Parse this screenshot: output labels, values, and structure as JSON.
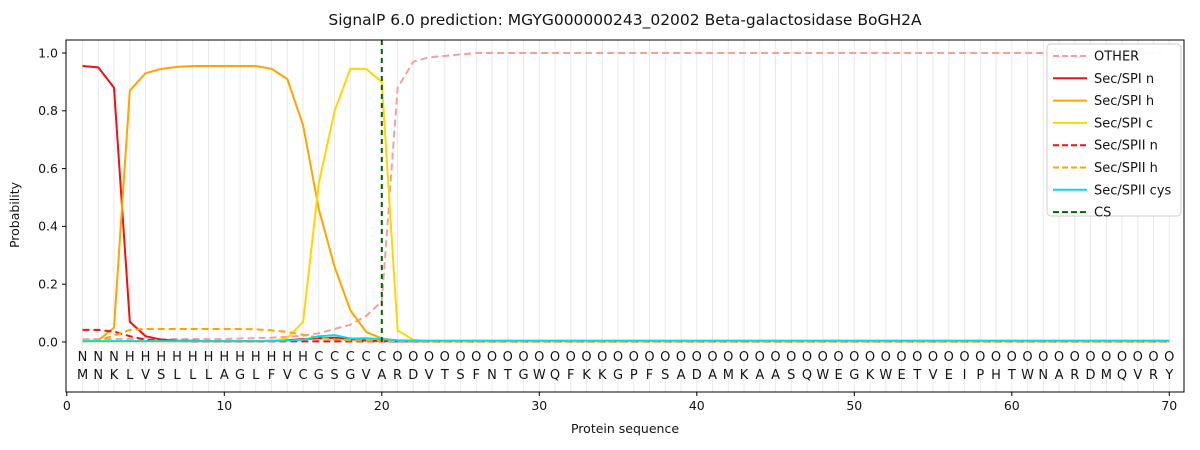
{
  "chart_data": {
    "type": "line",
    "title": "SignalP 6.0 prediction: MGYG000000243_02002 Beta-galactosidase BoGH2A",
    "xlabel": "Protein sequence",
    "ylabel": "Probability",
    "xlim": [
      0,
      71
    ],
    "ylim": [
      -0.17,
      1.045
    ],
    "xticks": [
      0,
      10,
      20,
      30,
      40,
      50,
      60,
      70
    ],
    "ytick_values": [
      0,
      0.2,
      0.4,
      0.6,
      0.8,
      1.0
    ],
    "ytick_labels": [
      "0.0",
      "0.2",
      "0.4",
      "0.6",
      "0.8",
      "1.0"
    ],
    "grid": "light vertical gridline at every residue position",
    "legend_position": "upper right",
    "sequence": "MNKLVSLLLAGLFVCGSGVARDVTSFNTGWQFKKGPFSADAMKAASQWEGKWETVEIPHTWNARDMQVRY",
    "region_labels": "NNNHHHHHHHHHHHHCCCCCOOOOOOOOOOOOOOOOOOOOOOOOOOOOOOOOOOOOOOOOOOOOOOOOOO",
    "label_colors": {
      "N": "#ee1111",
      "H": "#ffa500",
      "C": "#f7c600",
      "O": "#8c8c8c"
    },
    "sequence_color": "#3a3a3a",
    "cs_position": 20,
    "cs": {
      "label": "CS",
      "color": "#006400",
      "dash": true
    },
    "series": [
      {
        "id": "other",
        "label": "OTHER",
        "color": "#f2a1a1",
        "dash": true,
        "values": [
          0.01,
          0.01,
          0.01,
          0.01,
          0.01,
          0.01,
          0.01,
          0.01,
          0.01,
          0.01,
          0.012,
          0.013,
          0.015,
          0.018,
          0.022,
          0.03,
          0.045,
          0.06,
          0.09,
          0.14,
          0.88,
          0.97,
          0.985,
          0.99,
          0.995,
          1.0,
          1.0,
          1.0,
          1.0,
          1.0,
          1.0,
          1.0,
          1.0,
          1.0,
          1.0,
          1.0,
          1.0,
          1.0,
          1.0,
          1.0,
          1.0,
          1.0,
          1.0,
          1.0,
          1.0,
          1.0,
          1.0,
          1.0,
          1.0,
          1.0,
          1.0,
          1.0,
          1.0,
          1.0,
          1.0,
          1.0,
          1.0,
          1.0,
          1.0,
          1.0,
          1.0,
          1.0,
          1.0,
          1.0,
          1.0,
          1.0,
          1.0,
          1.0,
          1.0,
          1.0
        ]
      },
      {
        "id": "spi-n",
        "label": "Sec/SPI n",
        "color": "#ee1111",
        "dash": false,
        "values": [
          0.955,
          0.95,
          0.88,
          0.07,
          0.02,
          0.008,
          0.005,
          0.004,
          0.003,
          0.003,
          0.003,
          0.003,
          0.004,
          0.006,
          0.01,
          0.013,
          0.015,
          0.01,
          0.005,
          0.003,
          0.002,
          0.002,
          0.002,
          0.002,
          0.002,
          0.002,
          0.002,
          0.002,
          0.002,
          0.002,
          0.002,
          0.002,
          0.002,
          0.002,
          0.002,
          0.002,
          0.002,
          0.002,
          0.002,
          0.002,
          0.002,
          0.002,
          0.002,
          0.002,
          0.002,
          0.002,
          0.002,
          0.002,
          0.002,
          0.002,
          0.002,
          0.002,
          0.002,
          0.002,
          0.002,
          0.002,
          0.002,
          0.002,
          0.002,
          0.002,
          0.002,
          0.002,
          0.002,
          0.002,
          0.002,
          0.002,
          0.002,
          0.002,
          0.002,
          0.002
        ]
      },
      {
        "id": "spi-h",
        "label": "Sec/SPI h",
        "color": "#ffa500",
        "dash": false,
        "values": [
          0.002,
          0.006,
          0.05,
          0.87,
          0.93,
          0.945,
          0.952,
          0.955,
          0.955,
          0.955,
          0.955,
          0.955,
          0.945,
          0.91,
          0.75,
          0.46,
          0.26,
          0.11,
          0.035,
          0.012,
          0.005,
          0.002,
          0.002,
          0.002,
          0.002,
          0.002,
          0.002,
          0.002,
          0.002,
          0.002,
          0.002,
          0.002,
          0.002,
          0.002,
          0.002,
          0.002,
          0.002,
          0.002,
          0.002,
          0.002,
          0.002,
          0.002,
          0.002,
          0.002,
          0.002,
          0.002,
          0.002,
          0.002,
          0.002,
          0.002,
          0.002,
          0.002,
          0.002,
          0.002,
          0.002,
          0.002,
          0.002,
          0.002,
          0.002,
          0.002,
          0.002,
          0.002,
          0.002,
          0.002,
          0.002,
          0.002,
          0.002,
          0.002,
          0.002,
          0.002
        ]
      },
      {
        "id": "spi-c",
        "label": "Sec/SPI c",
        "color": "#ffd700",
        "dash": false,
        "values": [
          0.002,
          0.002,
          0.002,
          0.002,
          0.002,
          0.002,
          0.002,
          0.002,
          0.002,
          0.002,
          0.002,
          0.002,
          0.004,
          0.013,
          0.07,
          0.55,
          0.8,
          0.945,
          0.945,
          0.9,
          0.04,
          0.008,
          0.002,
          0.002,
          0.002,
          0.002,
          0.002,
          0.002,
          0.002,
          0.002,
          0.002,
          0.002,
          0.002,
          0.002,
          0.002,
          0.002,
          0.002,
          0.002,
          0.002,
          0.002,
          0.002,
          0.002,
          0.002,
          0.002,
          0.002,
          0.002,
          0.002,
          0.002,
          0.002,
          0.002,
          0.002,
          0.002,
          0.002,
          0.002,
          0.002,
          0.002,
          0.002,
          0.002,
          0.002,
          0.002,
          0.002,
          0.002,
          0.002,
          0.002,
          0.002,
          0.002,
          0.002,
          0.002,
          0.002,
          0.002
        ]
      },
      {
        "id": "spii-n",
        "label": "Sec/SPII n",
        "color": "#ee1111",
        "dash": true,
        "values": [
          0.042,
          0.042,
          0.036,
          0.02,
          0.008,
          0.004,
          0.003,
          0.002,
          0.002,
          0.002,
          0.002,
          0.002,
          0.002,
          0.002,
          0.002,
          0.002,
          0.002,
          0.002,
          0.002,
          0.002,
          0.002,
          0.002,
          0.002,
          0.002,
          0.002,
          0.002,
          0.002,
          0.002,
          0.002,
          0.002,
          0.002,
          0.002,
          0.002,
          0.002,
          0.002,
          0.002,
          0.002,
          0.002,
          0.002,
          0.002,
          0.002,
          0.002,
          0.002,
          0.002,
          0.002,
          0.002,
          0.002,
          0.002,
          0.002,
          0.002,
          0.002,
          0.002,
          0.002,
          0.002,
          0.002,
          0.002,
          0.002,
          0.002,
          0.002,
          0.002,
          0.002,
          0.002,
          0.002,
          0.002,
          0.002,
          0.002,
          0.002,
          0.002,
          0.002,
          0.002
        ]
      },
      {
        "id": "spii-h",
        "label": "Sec/SPII h",
        "color": "#ffa500",
        "dash": true,
        "values": [
          0.002,
          0.005,
          0.022,
          0.042,
          0.045,
          0.045,
          0.045,
          0.045,
          0.045,
          0.045,
          0.045,
          0.044,
          0.04,
          0.035,
          0.025,
          0.015,
          0.009,
          0.006,
          0.004,
          0.003,
          0.003,
          0.003,
          0.003,
          0.003,
          0.003,
          0.003,
          0.003,
          0.003,
          0.003,
          0.003,
          0.003,
          0.003,
          0.003,
          0.003,
          0.003,
          0.003,
          0.003,
          0.003,
          0.003,
          0.003,
          0.003,
          0.003,
          0.003,
          0.003,
          0.003,
          0.003,
          0.003,
          0.003,
          0.003,
          0.003,
          0.003,
          0.003,
          0.003,
          0.003,
          0.003,
          0.003,
          0.003,
          0.003,
          0.003,
          0.003,
          0.003,
          0.003,
          0.003,
          0.003,
          0.003,
          0.003,
          0.003,
          0.003,
          0.003,
          0.003
        ]
      },
      {
        "id": "spii-cys",
        "label": "Sec/SPII cys",
        "color": "#00dfe8",
        "dash": false,
        "values": [
          0.003,
          0.003,
          0.003,
          0.003,
          0.003,
          0.003,
          0.003,
          0.003,
          0.003,
          0.003,
          0.003,
          0.003,
          0.003,
          0.005,
          0.008,
          0.02,
          0.024,
          0.012,
          0.013,
          0.01,
          0.006,
          0.005,
          0.005,
          0.005,
          0.005,
          0.005,
          0.005,
          0.005,
          0.005,
          0.005,
          0.005,
          0.005,
          0.005,
          0.005,
          0.005,
          0.005,
          0.005,
          0.005,
          0.005,
          0.005,
          0.005,
          0.005,
          0.005,
          0.005,
          0.005,
          0.005,
          0.005,
          0.005,
          0.005,
          0.005,
          0.005,
          0.005,
          0.005,
          0.005,
          0.005,
          0.005,
          0.005,
          0.005,
          0.005,
          0.005,
          0.005,
          0.005,
          0.005,
          0.005,
          0.005,
          0.005,
          0.005,
          0.005,
          0.005,
          0.005
        ]
      }
    ]
  }
}
